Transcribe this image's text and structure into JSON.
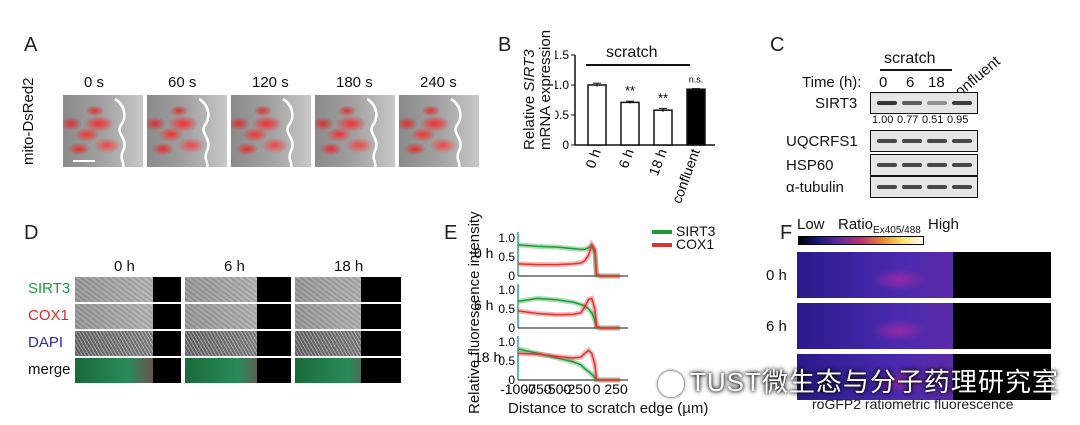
{
  "panels": {
    "A": {
      "label": "A",
      "row_label": "mito-DsRed2",
      "times": [
        "0 s",
        "60 s",
        "120 s",
        "180 s",
        "240 s"
      ]
    },
    "B": {
      "label": "B",
      "ylabel_prefix": "Relative ",
      "ylabel_gene": "SIRT3",
      "ylabel_line2": "mRNA expression",
      "group_label": "scratch",
      "yticks": [
        "0",
        "0.5",
        "1.0",
        "1.5"
      ],
      "categories": [
        "0 h",
        "6 h",
        "18 h",
        "confluent"
      ],
      "significance": [
        "",
        "**",
        "**",
        "n.s."
      ]
    },
    "C": {
      "label": "C",
      "group_label": "scratch",
      "time_label": "Time (h):",
      "lanes": [
        "0",
        "6",
        "18",
        "confluent"
      ],
      "rows": [
        "SIRT3",
        "UQCRFS1",
        "HSP60",
        "α-tubulin"
      ],
      "sirt3_quant": [
        "1.00",
        "0.77",
        "0.51",
        "0.95"
      ]
    },
    "D": {
      "label": "D",
      "times": [
        "0 h",
        "6 h",
        "18 h"
      ],
      "channels": [
        "SIRT3",
        "COX1",
        "DAPI",
        "merge"
      ],
      "channel_colors": [
        "#1f9a3a",
        "#d42a2a",
        "#2a2aa0",
        "#111111"
      ]
    },
    "E": {
      "label": "E",
      "ylabel": "Relative fluorescence intensity",
      "xlabel": "Distance to scratch edge (µm)",
      "xticks": [
        "-1000",
        "-750",
        "-500",
        "-250",
        "0",
        "250"
      ],
      "yticks": [
        "0",
        "0.5",
        "1.0"
      ],
      "rows": [
        "0 h",
        "6 h",
        "18 h"
      ],
      "legend": [
        {
          "name": "SIRT3",
          "color": "#1f9a3a"
        },
        {
          "name": "COX1",
          "color": "#d93535"
        }
      ]
    },
    "F": {
      "label": "F",
      "low": "Low",
      "ratio": "Ratio",
      "ratio_sub": "Ex405/488",
      "high": "High",
      "rows": [
        "0 h",
        "6 h"
      ],
      "caption": "roGFP2 ratiometric fluorescence"
    }
  },
  "chart_data": [
    {
      "type": "bar",
      "panel": "B",
      "categories": [
        "0 h",
        "6 h",
        "18 h",
        "confluent"
      ],
      "values": [
        1.0,
        0.71,
        0.58,
        0.93
      ],
      "errors": [
        0.03,
        0.02,
        0.03,
        0.01
      ],
      "colors": [
        "#ffffff",
        "#ffffff",
        "#ffffff",
        "#000000"
      ],
      "ylabel": "Relative SIRT3 mRNA expression",
      "ylim": [
        0,
        1.5
      ]
    },
    {
      "type": "line",
      "panel": "E",
      "xlim": [
        -1000,
        300
      ],
      "ylim": [
        0,
        1.0
      ],
      "xlabel": "Distance to scratch edge (µm)",
      "ylabel": "Relative fluorescence intensity",
      "subplots": [
        {
          "name": "0 h",
          "x": [
            -1000,
            -750,
            -500,
            -300,
            -200,
            -150,
            -100,
            -60,
            -20,
            0,
            50,
            300
          ],
          "series": [
            {
              "name": "SIRT3",
              "values": [
                0.82,
                0.78,
                0.76,
                0.72,
                0.7,
                0.7,
                0.75,
                0.8,
                0.6,
                0.02,
                0.0,
                0.0
              ]
            },
            {
              "name": "COX1",
              "values": [
                0.32,
                0.3,
                0.3,
                0.32,
                0.34,
                0.4,
                0.55,
                0.82,
                0.7,
                0.05,
                0.0,
                0.0
              ]
            }
          ]
        },
        {
          "name": "6 h",
          "x": [
            -1000,
            -750,
            -500,
            -300,
            -200,
            -150,
            -100,
            -60,
            -20,
            0,
            50,
            300
          ],
          "series": [
            {
              "name": "SIRT3",
              "values": [
                0.7,
                0.78,
                0.74,
                0.68,
                0.62,
                0.58,
                0.5,
                0.4,
                0.2,
                0.02,
                0.0,
                0.0
              ]
            },
            {
              "name": "COX1",
              "values": [
                0.45,
                0.38,
                0.35,
                0.36,
                0.4,
                0.55,
                0.75,
                0.78,
                0.5,
                0.05,
                0.0,
                0.0
              ]
            }
          ]
        },
        {
          "name": "18 h",
          "x": [
            -1000,
            -750,
            -500,
            -300,
            -200,
            -150,
            -100,
            -60,
            -20,
            0,
            50,
            300
          ],
          "series": [
            {
              "name": "SIRT3",
              "values": [
                0.82,
                0.7,
                0.58,
                0.48,
                0.4,
                0.3,
                0.22,
                0.15,
                0.06,
                0.0,
                0.0,
                0.0
              ]
            },
            {
              "name": "COX1",
              "values": [
                0.7,
                0.68,
                0.62,
                0.58,
                0.6,
                0.7,
                0.78,
                0.7,
                0.4,
                0.02,
                0.0,
                0.0
              ]
            }
          ]
        }
      ]
    }
  ],
  "watermark": "TUST微生态与分子药理研究室"
}
